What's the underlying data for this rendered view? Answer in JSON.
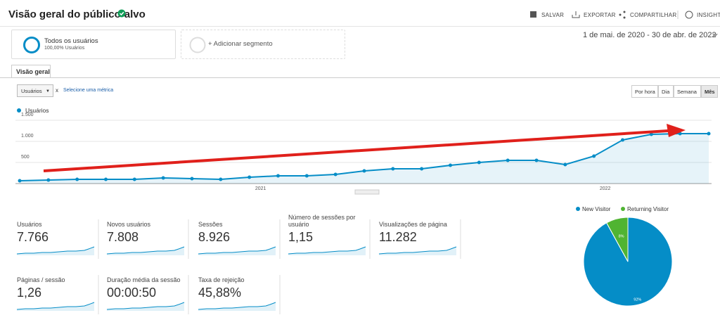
{
  "header": {
    "title": "Visão geral do público-alvo",
    "actions": [
      "SALVAR",
      "EXPORTAR",
      "COMPARTILHAR",
      "INSIGHTS"
    ]
  },
  "segments": {
    "active_name": "Todos os usuários",
    "active_sub": "100,00% Usuários",
    "add": "+ Adicionar segmento"
  },
  "date_range": "1 de mai. de 2020 - 30 de abr. de 2022",
  "tab": "Visão geral",
  "metric_select": "Usuários",
  "metric_remove": "x",
  "metric_add": "Selecione uma métrica",
  "granularity": [
    "Por hora",
    "Dia",
    "Semana",
    "Mês"
  ],
  "chart_data": [
    {
      "type": "line",
      "categories": [
        null,
        null,
        null,
        null,
        null,
        null,
        null,
        null,
        "2021",
        null,
        null,
        null,
        null,
        null,
        null,
        null,
        null,
        null,
        null,
        null,
        "2022",
        null,
        null,
        null,
        null
      ],
      "series": [
        {
          "name": "Usuários",
          "color": "#058dc7",
          "values": [
            67,
            83,
            100,
            100,
            100,
            133,
            117,
            100,
            150,
            183,
            183,
            217,
            300,
            350,
            350,
            433,
            500,
            550,
            550,
            450,
            650,
            1033,
            1167,
            1183,
            1183
          ]
        }
      ],
      "ylim": [
        0,
        1500
      ],
      "yticks": [
        {
          "value": 500,
          "label": "500"
        },
        {
          "value": 1000,
          "label": "1.000"
        },
        {
          "value": 1500,
          "label": "1.500"
        }
      ],
      "grid": true
    },
    {
      "type": "pie",
      "categories": [
        "New Visitor",
        "Returning Visitor"
      ],
      "values": [
        92,
        8
      ],
      "value_labels": [
        "92%",
        "8%"
      ],
      "colors": [
        "#058dc7",
        "#50b432"
      ]
    }
  ],
  "metrics": [
    {
      "label": "Usuários",
      "value": "7.766"
    },
    {
      "label": "Novos usuários",
      "value": "7.808"
    },
    {
      "label": "Sessões",
      "value": "8.926"
    },
    {
      "label": "Número de sessões por usuário",
      "value": "1,15"
    },
    {
      "label": "Visualizações de página",
      "value": "11.282"
    },
    {
      "label": "Páginas / sessão",
      "value": "1,26"
    },
    {
      "label": "Duração média da sessão",
      "value": "00:00:50"
    },
    {
      "label": "Taxa de rejeição",
      "value": "45,88%"
    }
  ]
}
